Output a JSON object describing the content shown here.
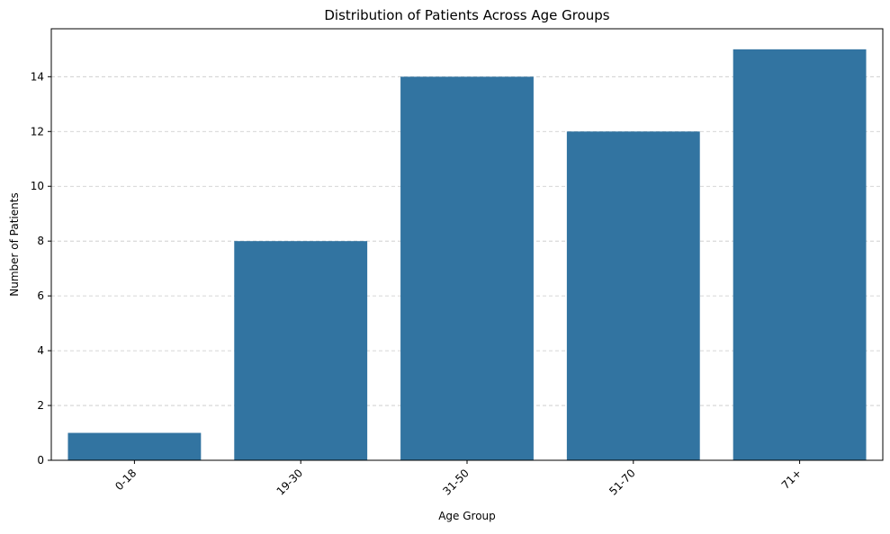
{
  "chart_data": {
    "type": "bar",
    "title": "Distribution of Patients Across Age Groups",
    "xlabel": "Age Group",
    "ylabel": "Number of Patients",
    "categories": [
      "0-18",
      "19-30",
      "31-50",
      "51-70",
      "71+"
    ],
    "values": [
      1,
      8,
      14,
      12,
      15
    ],
    "ylim": [
      0,
      15.75
    ],
    "yticks": [
      0,
      2,
      4,
      6,
      8,
      10,
      12,
      14
    ],
    "xtick_rotation_deg": 45,
    "grid": {
      "axis": "y",
      "style": "dashed",
      "color": "#c8c8c8"
    },
    "bar_color": "#3274a1",
    "legend": "none"
  }
}
